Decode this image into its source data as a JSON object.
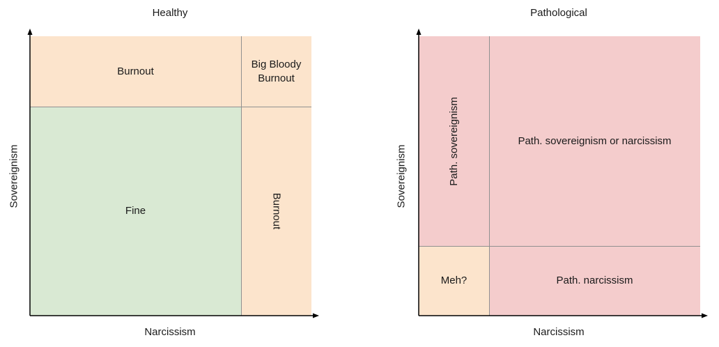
{
  "colors": {
    "burnout": "#fce4cc",
    "fine": "#d9e9d3",
    "pathological": "#f4cccc",
    "meh": "#fce4cc",
    "axis": "#000000",
    "divider": "#909090"
  },
  "healthy": {
    "title": "Healthy",
    "x_label": "Narcissism",
    "y_label": "Sovereignism",
    "cells": {
      "top_left": "Burnout",
      "top_right": "Big Bloody\nBurnout",
      "bottom_left": "Fine",
      "bottom_right": "Burnout"
    }
  },
  "pathological": {
    "title": "Pathological",
    "x_label": "Narcissism",
    "y_label": "Sovereignism",
    "cells": {
      "top_left": "Path. sovereignism",
      "top_right": "Path. sovereignism or narcissism",
      "bottom_left": "Meh?",
      "bottom_right": "Path. narcissism"
    }
  }
}
